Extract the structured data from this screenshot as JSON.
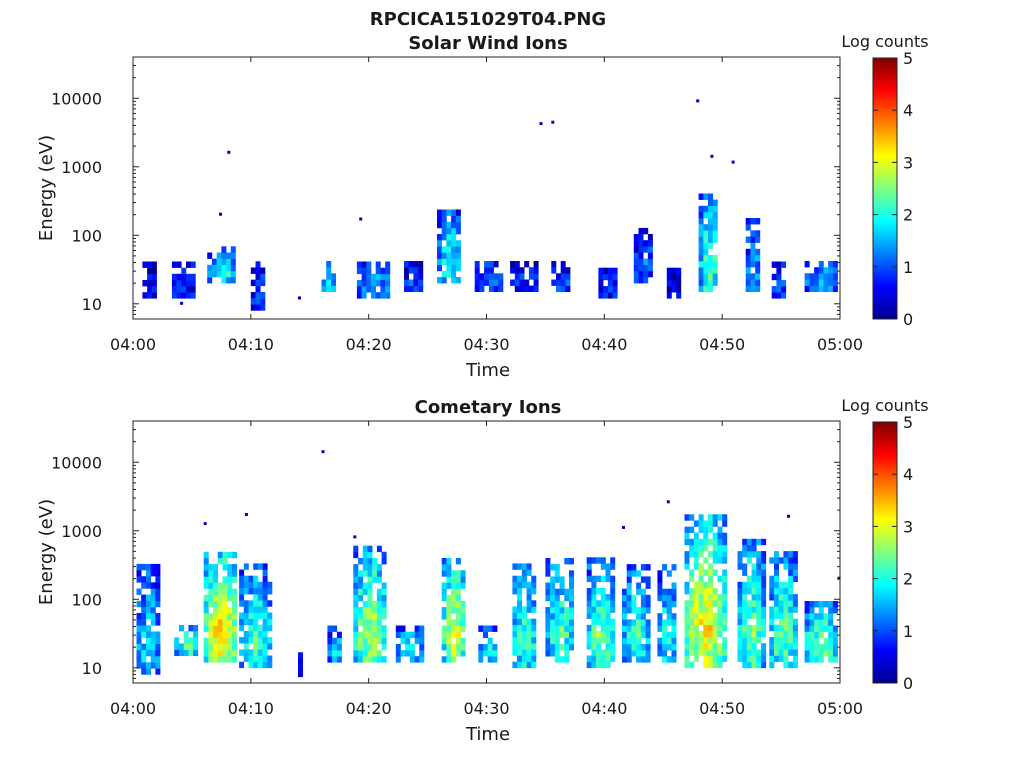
{
  "figure": {
    "title": "RPCICA151029T04.PNG"
  },
  "colorbar": {
    "label": "Log counts",
    "min": 0,
    "max": 5,
    "ticks": [
      "0",
      "1",
      "2",
      "3",
      "4",
      "5"
    ],
    "colormap": "jet",
    "colors": [
      "#00008f",
      "#0000ff",
      "#0080ff",
      "#00ffff",
      "#80ff80",
      "#ffff00",
      "#ff8000",
      "#ff0000",
      "#800000"
    ]
  },
  "chart_data": [
    {
      "type": "heatmap",
      "title": "Solar Wind Ions",
      "xlabel": "Time",
      "ylabel": "Energy (eV)",
      "xlim": [
        "04:00",
        "05:00"
      ],
      "ylim": [
        6,
        40000
      ],
      "yscale": "log",
      "xticks": [
        "04:00",
        "04:10",
        "04:20",
        "04:30",
        "04:40",
        "04:50",
        "05:00"
      ],
      "yticks": [
        "10",
        "100",
        "1000",
        "10000"
      ],
      "ytick_values": [
        10,
        100,
        1000,
        10000
      ],
      "colorbar_label": "Log counts",
      "clim": [
        0,
        5
      ],
      "note_format": "each blob: [start_min, end_min, e_low_eV, e_high_eV, peak_log_counts]",
      "blobs": [
        [
          0.8,
          1.8,
          12,
          40,
          0.6
        ],
        [
          3.3,
          5.0,
          12,
          40,
          0.9
        ],
        [
          6.3,
          8.5,
          20,
          60,
          2.0
        ],
        [
          10.0,
          11.2,
          8,
          40,
          1.0
        ],
        [
          16.0,
          17.0,
          15,
          40,
          1.8
        ],
        [
          19.0,
          21.5,
          12,
          40,
          1.5
        ],
        [
          23.0,
          24.5,
          15,
          40,
          1.0
        ],
        [
          25.8,
          27.5,
          20,
          200,
          2.0
        ],
        [
          29.0,
          31.0,
          15,
          40,
          1.2
        ],
        [
          32.0,
          34.0,
          15,
          40,
          0.8
        ],
        [
          35.5,
          37.0,
          15,
          35,
          1.0
        ],
        [
          39.5,
          41.0,
          12,
          30,
          0.8
        ],
        [
          42.5,
          44.0,
          20,
          120,
          1.2
        ],
        [
          45.3,
          46.3,
          12,
          30,
          0.7
        ],
        [
          48.0,
          49.5,
          15,
          400,
          2.3
        ],
        [
          52.0,
          53.0,
          15,
          150,
          1.6
        ],
        [
          54.2,
          55.2,
          12,
          40,
          1.0
        ],
        [
          57.0,
          59.5,
          15,
          40,
          1.6
        ]
      ],
      "points": [
        [
          4.0,
          10,
          0.5
        ],
        [
          8.0,
          1600,
          0.3
        ],
        [
          7.3,
          200,
          0.4
        ],
        [
          14.0,
          12,
          0.3
        ],
        [
          19.2,
          170,
          0.4
        ],
        [
          34.5,
          4200,
          0.3
        ],
        [
          35.5,
          4400,
          0.3
        ],
        [
          47.8,
          9000,
          0.4
        ],
        [
          49.0,
          1400,
          0.3
        ],
        [
          50.8,
          1150,
          0.3
        ]
      ]
    },
    {
      "type": "heatmap",
      "title": "Cometary Ions",
      "xlabel": "Time",
      "ylabel": "Energy (eV)",
      "xlim": [
        "04:00",
        "05:00"
      ],
      "ylim": [
        6,
        40000
      ],
      "yscale": "log",
      "xticks": [
        "04:00",
        "04:10",
        "04:20",
        "04:30",
        "04:40",
        "04:50",
        "05:00"
      ],
      "yticks": [
        "10",
        "100",
        "1000",
        "10000"
      ],
      "ytick_values": [
        10,
        100,
        1000,
        10000
      ],
      "colorbar_label": "Log counts",
      "clim": [
        0,
        5
      ],
      "note_format": "each blob: [start_min, end_min, e_low_eV, e_high_eV, peak_log_counts]",
      "blobs": [
        [
          0.3,
          2.0,
          8,
          300,
          1.8
        ],
        [
          3.5,
          5.5,
          15,
          40,
          2.2
        ],
        [
          6.0,
          8.7,
          12,
          450,
          3.3
        ],
        [
          9.0,
          11.5,
          10,
          300,
          2.2
        ],
        [
          14.0,
          14.3,
          6,
          15,
          1.0
        ],
        [
          16.5,
          17.5,
          12,
          40,
          1.8
        ],
        [
          18.7,
          21.3,
          12,
          500,
          2.8
        ],
        [
          22.3,
          24.3,
          12,
          40,
          2.0
        ],
        [
          26.2,
          28.0,
          12,
          400,
          3.0
        ],
        [
          29.3,
          30.7,
          12,
          40,
          2.0
        ],
        [
          32.2,
          34.0,
          10,
          300,
          2.2
        ],
        [
          35.0,
          37.2,
          12,
          400,
          2.2
        ],
        [
          38.5,
          40.5,
          10,
          400,
          2.5
        ],
        [
          41.5,
          43.5,
          12,
          300,
          2.2
        ],
        [
          44.5,
          46.0,
          12,
          300,
          2.0
        ],
        [
          46.8,
          50.0,
          10,
          1600,
          3.2
        ],
        [
          51.3,
          53.3,
          10,
          700,
          2.5
        ],
        [
          54.0,
          56.0,
          10,
          500,
          2.4
        ],
        [
          57.0,
          59.5,
          12,
          80,
          2.6
        ]
      ],
      "points": [
        [
          16.0,
          14000,
          0.3
        ],
        [
          6.0,
          1250,
          0.3
        ],
        [
          9.5,
          1700,
          0.3
        ],
        [
          18.7,
          800,
          0.4
        ],
        [
          41.5,
          1100,
          0.3
        ],
        [
          45.3,
          2600,
          0.3
        ],
        [
          55.5,
          1600,
          0.5
        ],
        [
          59.8,
          200,
          0.3
        ]
      ]
    }
  ]
}
